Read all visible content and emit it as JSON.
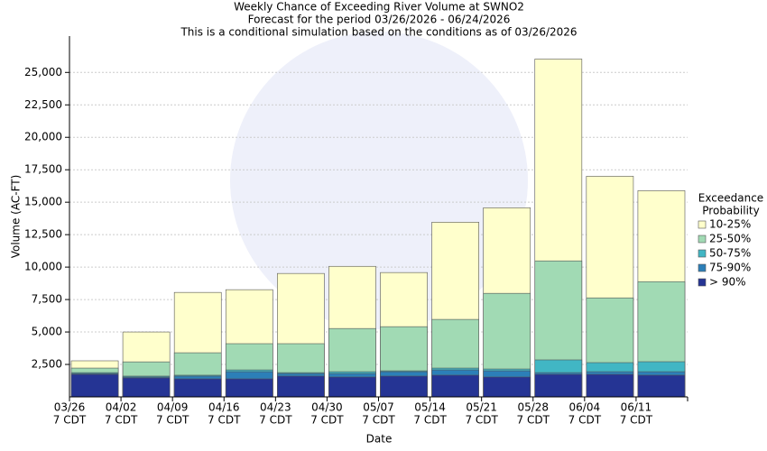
{
  "chart_data": {
    "type": "bar",
    "title": [
      "Weekly Chance of Exceeding River Volume at SWNO2",
      "Forecast for the period 03/26/2026 - 06/24/2026",
      "This is a conditional simulation based on the conditions as of 03/26/2026"
    ],
    "xlabel": "Date",
    "ylabel": "Volume (AC-FT)",
    "categories": [
      "03/26",
      "04/02",
      "04/09",
      "04/16",
      "04/23",
      "04/30",
      "05/07",
      "05/14",
      "05/21",
      "05/28",
      "06/04",
      "06/11"
    ],
    "category_suffix": "7 CDT",
    "legend_title": [
      "Exceedance",
      "Probability"
    ],
    "series": [
      {
        "name": "10-25%",
        "color": "#ffffcc",
        "values": [
          2780,
          5000,
          8050,
          8260,
          9510,
          10060,
          9580,
          13460,
          14570,
          26030,
          17000,
          15890
        ]
      },
      {
        "name": "25-50%",
        "color": "#a1dab4",
        "values": [
          2220,
          2700,
          3400,
          4100,
          4100,
          5270,
          5410,
          5970,
          7980,
          10480,
          7630,
          8880
        ]
      },
      {
        "name": "50-75%",
        "color": "#41b6c4",
        "values": [
          1870,
          1600,
          1670,
          2080,
          1870,
          1940,
          2010,
          2220,
          2150,
          2850,
          2640,
          2710
        ]
      },
      {
        "name": "75-90%",
        "color": "#2c7fb8",
        "values": [
          1800,
          1530,
          1600,
          1940,
          1800,
          1800,
          1940,
          2080,
          2010,
          1870,
          1940,
          1940
        ]
      },
      {
        "name": "> 90%",
        "color": "#253494",
        "values": [
          1735,
          1460,
          1390,
          1390,
          1600,
          1530,
          1600,
          1670,
          1530,
          1735,
          1735,
          1670
        ]
      }
    ],
    "ylim": [
      0,
      27800
    ],
    "yticks": [
      {
        "value": 2500,
        "label": "2,500"
      },
      {
        "value": 5000,
        "label": "5,000"
      },
      {
        "value": 7500,
        "label": "7,500"
      },
      {
        "value": 10000,
        "label": "10,000"
      },
      {
        "value": 12500,
        "label": "12,500"
      },
      {
        "value": 15000,
        "label": "15,000"
      },
      {
        "value": 17500,
        "label": "17,500"
      },
      {
        "value": 20000,
        "label": "20,000"
      },
      {
        "value": 22500,
        "label": "22,500"
      },
      {
        "value": 25000,
        "label": "25,000"
      }
    ],
    "grid": true,
    "legend": "right"
  }
}
